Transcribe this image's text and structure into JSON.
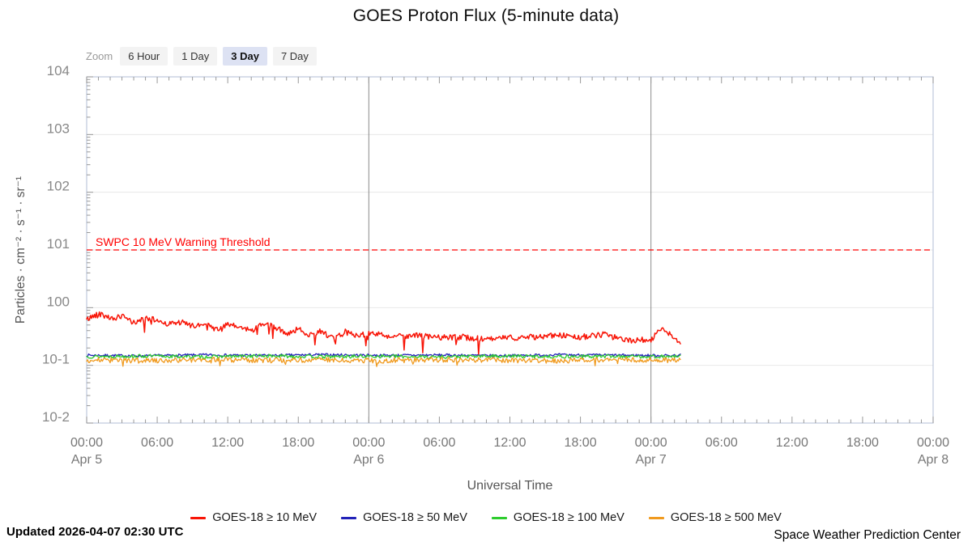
{
  "page": {
    "title": "GOES Proton Flux (5-minute data)",
    "updated": "Updated 2026-04-07 02:30 UTC",
    "credit": "Space Weather Prediction Center"
  },
  "zoom_controls": {
    "label": "Zoom",
    "options": [
      "6 Hour",
      "1 Day",
      "3 Day",
      "7 Day"
    ],
    "active": "3 Day"
  },
  "chart_data": {
    "type": "line",
    "title": "GOES Proton Flux (5-minute data)",
    "xlabel": "Universal Time",
    "ylabel": "Particles · cm⁻² · s⁻¹ · sr⁻¹",
    "x_range_hours": [
      0,
      72
    ],
    "y_log_range": [
      -2,
      4
    ],
    "grid": true,
    "legend_position": "bottom",
    "data_end_hour": 50.5,
    "day_boundary_hours": [
      24,
      48
    ],
    "colors": {
      "border": "#bdc7dd",
      "grid": "#e8e8e8",
      "tick": "#999999",
      "axis_text": "#888888",
      "axis_title_text": "#555555",
      "day_line": "#8a8a8a"
    },
    "threshold": {
      "value": 10,
      "label": "SWPC 10 MeV Warning Threshold",
      "color": "#ff0000"
    },
    "y_ticks": [
      {
        "exp": 4,
        "label": "104"
      },
      {
        "exp": 3,
        "label": "103"
      },
      {
        "exp": 2,
        "label": "102"
      },
      {
        "exp": 1,
        "label": "101"
      },
      {
        "exp": 0,
        "label": "100"
      },
      {
        "exp": -1,
        "label": "10-1"
      },
      {
        "exp": -2,
        "label": "10-2"
      }
    ],
    "x_ticks": [
      {
        "hour": 0,
        "time": "00:00",
        "date": "Apr 5"
      },
      {
        "hour": 6,
        "time": "06:00"
      },
      {
        "hour": 12,
        "time": "12:00"
      },
      {
        "hour": 18,
        "time": "18:00"
      },
      {
        "hour": 24,
        "time": "00:00",
        "date": "Apr 6"
      },
      {
        "hour": 30,
        "time": "06:00"
      },
      {
        "hour": 36,
        "time": "12:00"
      },
      {
        "hour": 42,
        "time": "18:00"
      },
      {
        "hour": 48,
        "time": "00:00",
        "date": "Apr 7"
      },
      {
        "hour": 54,
        "time": "06:00"
      },
      {
        "hour": 60,
        "time": "12:00"
      },
      {
        "hour": 66,
        "time": "18:00"
      },
      {
        "hour": 72,
        "time": "00:00",
        "date": "Apr 8"
      }
    ],
    "series": [
      {
        "name": "GOES-18 ≥ 10 MeV",
        "color": "#f81507",
        "width": 1.5,
        "seed": 42,
        "noise_log": 0.05,
        "dip_chance": 0.035,
        "dip_log": 0.3,
        "anchors_hours": [
          0,
          1,
          2,
          3,
          4,
          5,
          6,
          7,
          8,
          9,
          10,
          11,
          12,
          13,
          14,
          15,
          16,
          17,
          18,
          19,
          20,
          21,
          22,
          23,
          24,
          26,
          28,
          30,
          32,
          34,
          36,
          38,
          40,
          42,
          44,
          46,
          48,
          49,
          50,
          50.5
        ],
        "anchors_flux": [
          0.62,
          0.8,
          0.66,
          0.7,
          0.55,
          0.65,
          0.6,
          0.52,
          0.56,
          0.48,
          0.52,
          0.42,
          0.5,
          0.46,
          0.4,
          0.52,
          0.46,
          0.36,
          0.42,
          0.34,
          0.4,
          0.28,
          0.38,
          0.33,
          0.36,
          0.32,
          0.33,
          0.3,
          0.31,
          0.28,
          0.3,
          0.31,
          0.33,
          0.31,
          0.34,
          0.27,
          0.28,
          0.45,
          0.3,
          0.22
        ]
      },
      {
        "name": "GOES-18 ≥ 50 MeV",
        "color": "#2222b8",
        "width": 1.3,
        "seed": 7,
        "noise_log": 0.022,
        "dip_chance": 0,
        "dip_log": 0,
        "anchors_hours": [
          0,
          5,
          10,
          15,
          20,
          25,
          30,
          35,
          40,
          45,
          50,
          50.5
        ],
        "anchors_flux": [
          0.15,
          0.146,
          0.152,
          0.148,
          0.153,
          0.149,
          0.151,
          0.147,
          0.152,
          0.15,
          0.148,
          0.15
        ]
      },
      {
        "name": "GOES-18 ≥ 100 MeV",
        "color": "#2ecc2e",
        "width": 1.3,
        "seed": 13,
        "noise_log": 0.03,
        "dip_chance": 0,
        "dip_log": 0,
        "anchors_hours": [
          0,
          5,
          10,
          15,
          20,
          25,
          30,
          35,
          40,
          45,
          50,
          50.5
        ],
        "anchors_flux": [
          0.142,
          0.145,
          0.14,
          0.146,
          0.141,
          0.144,
          0.14,
          0.145,
          0.142,
          0.144,
          0.141,
          0.143
        ]
      },
      {
        "name": "GOES-18 ≥ 500 MeV",
        "color": "#f09a1e",
        "width": 1.3,
        "seed": 99,
        "noise_log": 0.045,
        "dip_chance": 0.02,
        "dip_log": 0.12,
        "anchors_hours": [
          0,
          5,
          10,
          15,
          20,
          25,
          30,
          35,
          40,
          45,
          50,
          50.5
        ],
        "anchors_flux": [
          0.124,
          0.12,
          0.126,
          0.122,
          0.125,
          0.121,
          0.126,
          0.123,
          0.12,
          0.125,
          0.122,
          0.124
        ]
      }
    ]
  }
}
